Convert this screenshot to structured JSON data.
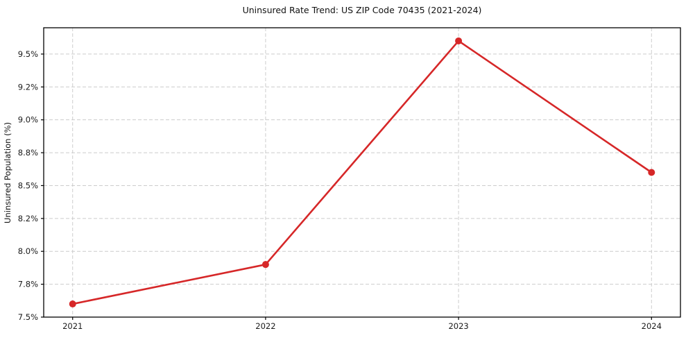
{
  "chart_data": {
    "type": "line",
    "title": "Uninsured Rate Trend: US ZIP Code 70435 (2021-2024)",
    "xlabel": "",
    "ylabel": "Uninsured Population (%)",
    "categories": [
      "2021",
      "2022",
      "2023",
      "2024"
    ],
    "x": [
      2021,
      2022,
      2023,
      2024
    ],
    "values": [
      7.6,
      7.9,
      9.6,
      8.6
    ],
    "x_tick_labels": [
      "2021",
      "2022",
      "2023",
      "2024"
    ],
    "y_ticks": [
      7.5,
      7.75,
      8.0,
      8.25,
      8.5,
      8.75,
      9.0,
      9.25,
      9.5
    ],
    "y_tick_labels": [
      "7.5%",
      "7.8%",
      "8.0%",
      "8.2%",
      "8.5%",
      "8.8%",
      "9.0%",
      "9.2%",
      "9.5%"
    ],
    "xlim": [
      2020.85,
      2024.15
    ],
    "ylim": [
      7.5,
      9.7
    ],
    "grid": true,
    "grid_style": "dashed",
    "legend_position": "none",
    "marker": "circle",
    "colors": {
      "line": "#d62728",
      "marker": "#d62728",
      "grid": "#cccccc",
      "axis": "#000000",
      "text": "#1a1a1a",
      "background": "#ffffff"
    }
  }
}
